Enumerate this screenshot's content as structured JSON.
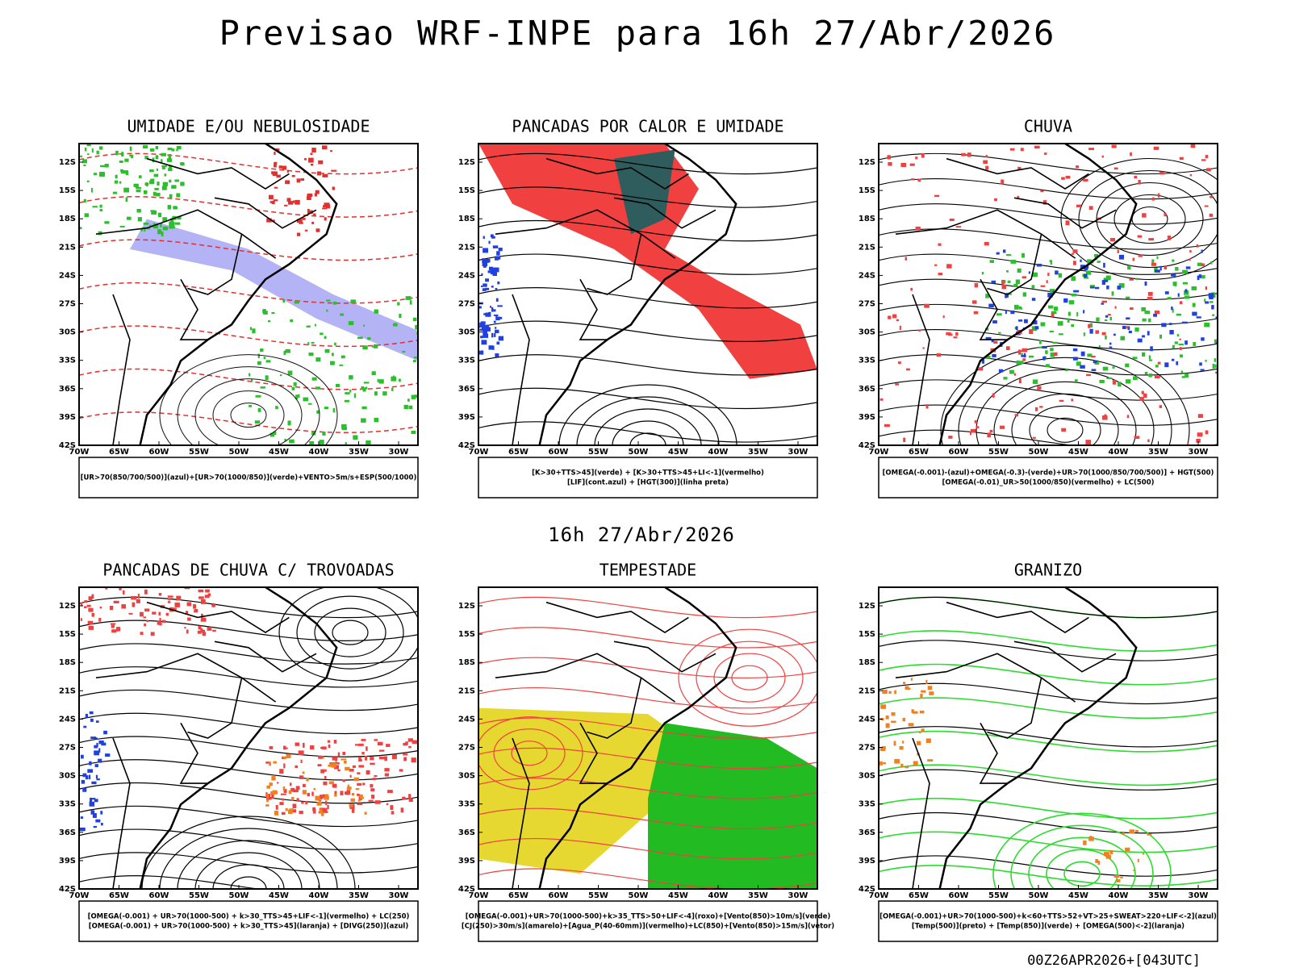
{
  "header": {
    "title": "Previsao WRF-INPE  para 16h 27/Abr/2026"
  },
  "mid_label": "16h 27/Abr/2026",
  "footer": "00Z26APR2026+[043UTC]",
  "lat_ticks": [
    "12S",
    "15S",
    "18S",
    "21S",
    "24S",
    "27S",
    "30S",
    "33S",
    "36S",
    "39S",
    "42S"
  ],
  "lon_ticks": [
    "70W",
    "65W",
    "60W",
    "55W",
    "50W",
    "45W",
    "40W",
    "35W",
    "30W"
  ],
  "panels": [
    {
      "title": "UMIDADE E/OU NEBULOSIDADE",
      "legend": [
        "[UR>70(850/700/500)](azul)+[UR>70(1000/850)](verde)+VENTO>5m/s+ESP(500/1000)"
      ]
    },
    {
      "title": "PANCADAS POR CALOR E UMIDADE",
      "legend": [
        "[K>30+TTS>45](verde) + [K>30+TTS>45+LI<-1](vermelho)",
        "[LIF](cont.azul) + [HGT(300)](linha preta)"
      ]
    },
    {
      "title": "CHUVA",
      "legend": [
        "[OMEGA(-0.001)-(azul)+OMEGA(-0.3)-(verde)+UR>70(1000/850/700/500)] + HGT(500)",
        "[OMEGA(-0.01)_UR>50(1000/850)(vermelho) + LC(500)"
      ]
    },
    {
      "title": "PANCADAS DE CHUVA C/ TROVOADAS",
      "legend": [
        "[OMEGA(-0.001) + UR>70(1000-500) + k>30_TTS>45+LIF<-1](vermelho) + LC(250)",
        "[OMEGA(-0.001) + UR>70(1000-500) + k>30_TTS>45](laranja) + [DIVG(250)](azul)"
      ]
    },
    {
      "title": "TEMPESTADE",
      "legend": [
        "[OMEGA(-0.001)+UR>70(1000-500)+k>35_TTS>50+LIF<-4](roxo)+[Vento(850)>10m/s](verde)",
        "[CJ(250)>30m/s](amarelo)+[Agua_P(40-60mm)](vermelho)+LC(850)+[Vento(850)>15m/s](vetor)"
      ]
    },
    {
      "title": "GRANIZO",
      "legend": [
        "[OMEGA(-0.001)+UR>70(1000-500)+k<60+TTS>52+VT>25+SWEAT>220+LIF<-2](azul)",
        "[Temp(500)](preto) + [Temp(850)](verde) + [OMEGA(500)<-2](laranja)"
      ]
    }
  ]
}
